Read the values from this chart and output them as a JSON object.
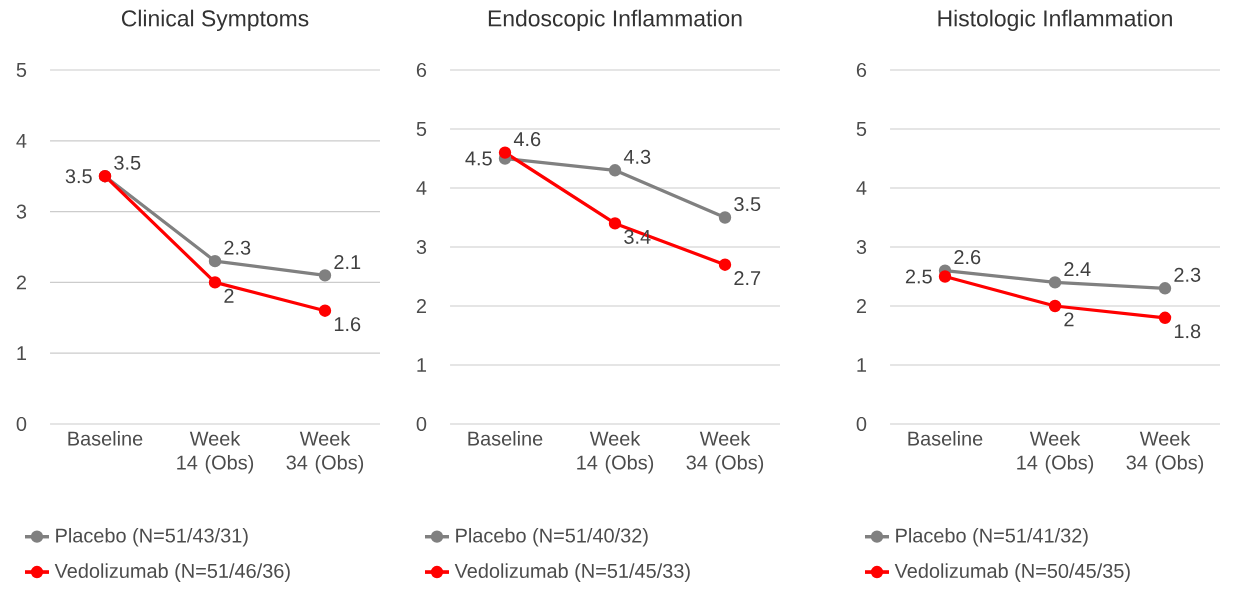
{
  "chart_data": [
    {
      "type": "line",
      "title": "Clinical Symptoms",
      "categories": [
        "Baseline",
        "Week 14 (Obs)",
        "Week 34 (Obs)"
      ],
      "ylim": [
        0,
        5
      ],
      "yticks": [
        0,
        1,
        2,
        3,
        4,
        5
      ],
      "grid": "y",
      "legend": "bottom",
      "marker": "circle",
      "data_labels": true,
      "series": [
        {
          "name": "Placebo (N=51/43/31)",
          "color": "#808080",
          "values": [
            3.5,
            2.3,
            2.1
          ]
        },
        {
          "name": "Vedolizumab (N=51/46/36)",
          "color": "#ff0000",
          "values": [
            3.5,
            2,
            1.6
          ]
        }
      ]
    },
    {
      "type": "line",
      "title": "Endoscopic Inflammation",
      "categories": [
        "Baseline",
        "Week 14 (Obs)",
        "Week 34 (Obs)"
      ],
      "ylim": [
        0,
        6
      ],
      "yticks": [
        0,
        1,
        2,
        3,
        4,
        5,
        6
      ],
      "grid": "y",
      "legend": "bottom",
      "marker": "circle",
      "data_labels": true,
      "series": [
        {
          "name": "Placebo (N=51/40/32)",
          "color": "#808080",
          "values": [
            4.5,
            4.3,
            3.5
          ]
        },
        {
          "name": "Vedolizumab (N=51/45/33)",
          "color": "#ff0000",
          "values": [
            4.6,
            3.4,
            2.7
          ]
        }
      ]
    },
    {
      "type": "line",
      "title": "Histologic Inflammation",
      "categories": [
        "Baseline",
        "Week 14 (Obs)",
        "Week 34 (Obs)"
      ],
      "ylim": [
        0,
        6
      ],
      "yticks": [
        0,
        1,
        2,
        3,
        4,
        5,
        6
      ],
      "grid": "y",
      "legend": "bottom",
      "marker": "circle",
      "data_labels": true,
      "series": [
        {
          "name": "Placebo (N=51/41/32)",
          "color": "#808080",
          "values": [
            2.6,
            2.4,
            2.3
          ]
        },
        {
          "name": "Vedolizumab (N=50/45/35)",
          "color": "#ff0000",
          "values": [
            2.5,
            2,
            1.8
          ]
        }
      ]
    }
  ]
}
